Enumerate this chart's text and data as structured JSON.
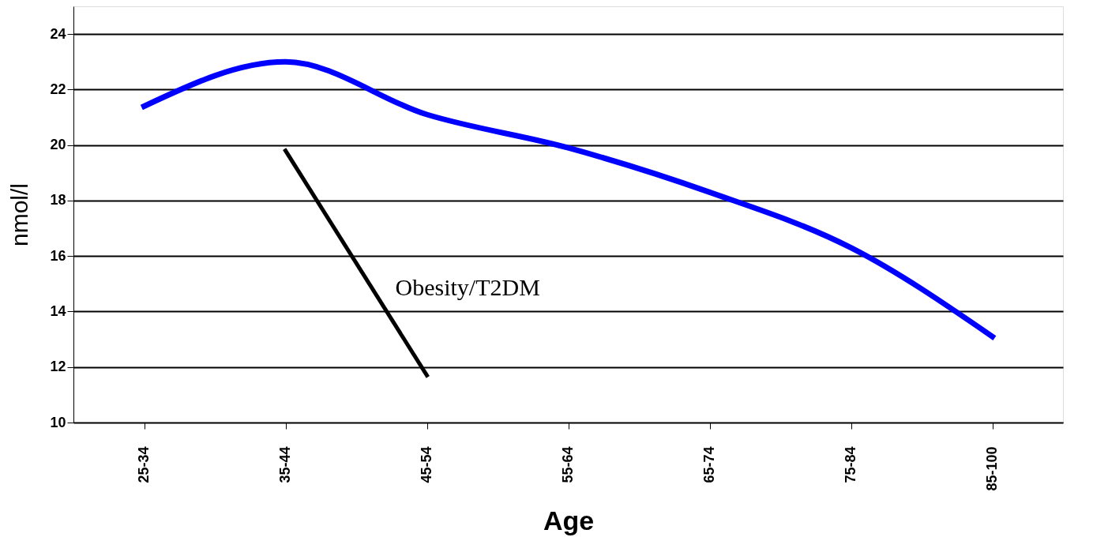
{
  "chart_data": {
    "type": "line",
    "xlabel": "Age",
    "ylabel": "nmol/l",
    "categories": [
      "25-34",
      "35-44",
      "45-54",
      "55-64",
      "65-74",
      "75-84",
      "85-100"
    ],
    "series": [
      {
        "color": "#0000ff",
        "values": [
          21.4,
          23.0,
          21.1,
          19.9,
          18.3,
          16.3,
          13.1
        ]
      },
      {
        "name": "Obesity/T2DM",
        "color": "#000000",
        "values": [
          null,
          19.8,
          11.7,
          null,
          null,
          null,
          null
        ]
      }
    ],
    "ylim": [
      10,
      25
    ],
    "yticks": [
      10,
      12,
      14,
      16,
      18,
      20,
      22,
      24
    ],
    "grid": "y"
  }
}
